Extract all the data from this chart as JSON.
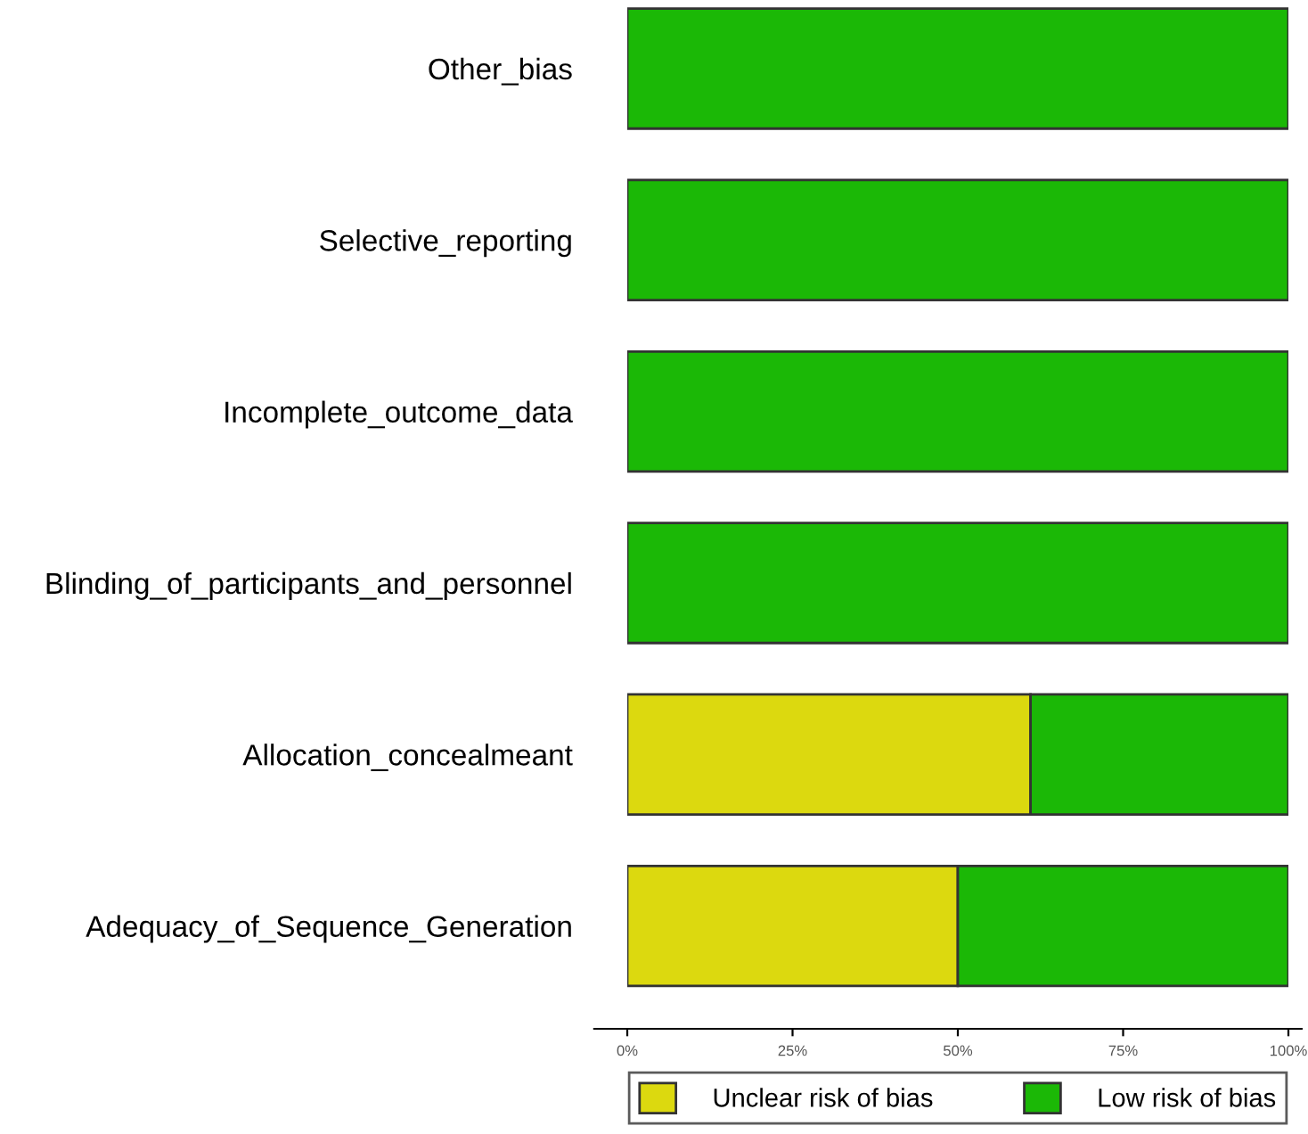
{
  "chart_data": {
    "type": "bar",
    "orientation": "horizontal",
    "stacked": true,
    "categories": [
      "Other_bias",
      "Selective_reporting",
      "Incomplete_outcome_data",
      "Blinding_of_participants_and_personnel",
      "Allocation_concealmeant",
      "Adequacy_of_Sequence_Generation"
    ],
    "series": [
      {
        "name": "Unclear risk of bias",
        "color": "#dcd90f",
        "values": [
          0,
          0,
          0,
          0,
          61,
          50
        ]
      },
      {
        "name": "Low risk of bias",
        "color": "#1bb806",
        "values": [
          100,
          100,
          100,
          100,
          39,
          50
        ]
      }
    ],
    "xlim": [
      0,
      100
    ],
    "xticks": [
      {
        "value": 0,
        "label": "0%"
      },
      {
        "value": 25,
        "label": "25%"
      },
      {
        "value": 50,
        "label": "50%"
      },
      {
        "value": 75,
        "label": "75%"
      },
      {
        "value": 100,
        "label": "100%"
      }
    ],
    "legend": "bottom",
    "grid": false
  }
}
